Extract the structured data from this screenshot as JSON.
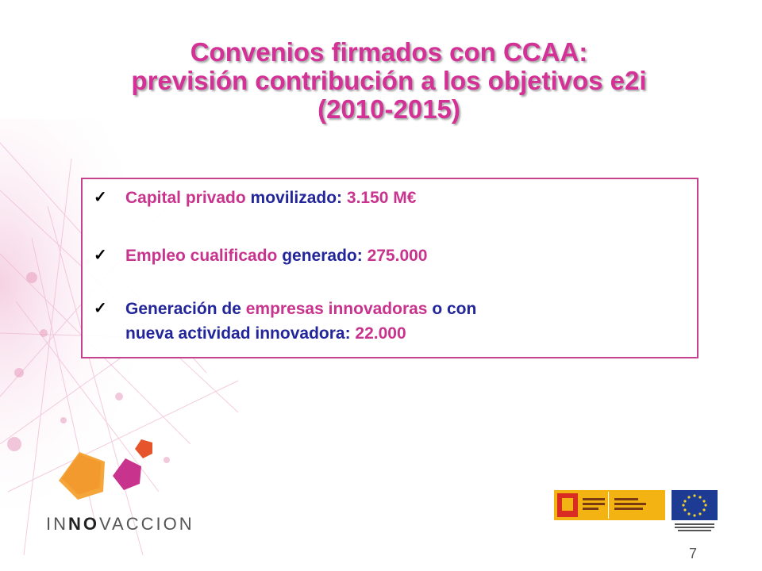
{
  "slide": {
    "title_lines": [
      "Convenios firmados con CCAA:",
      "previsión contribución a los objetivos e2i",
      "(2010-2015)"
    ],
    "items": [
      {
        "check": "✓",
        "parts": [
          "Capital privado ",
          "movilizado:",
          " ",
          "3.150 M€"
        ]
      },
      {
        "check": "✓",
        "parts": [
          "Empleo cualificado ",
          "generado:",
          " ",
          "275.000"
        ]
      },
      {
        "check": "✓",
        "parts": [
          "Generación de ",
          "empresas innovadoras",
          " o con",
          "nueva actividad innovadora:",
          " ",
          "22.000"
        ]
      }
    ],
    "logo": {
      "brand_part1": "IN",
      "brand_part2": "NO",
      "brand_part3": "VACCION"
    },
    "page_number": "7"
  },
  "colors": {
    "title": "#d33196",
    "pink_text": "#c8348d",
    "blue_text": "#22269a",
    "box_border": "#c6418e"
  },
  "icons": [
    "checkmark-icon",
    "pentagon-logo-icon",
    "gobierno-espana-logo",
    "union-europea-flag-icon"
  ]
}
